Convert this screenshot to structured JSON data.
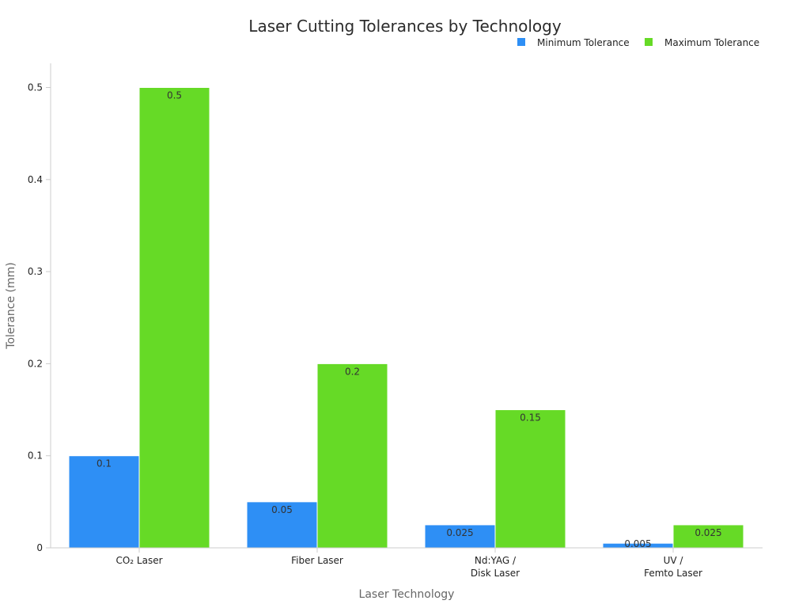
{
  "chart_data": {
    "type": "bar",
    "title": "Laser Cutting Tolerances by Technology",
    "xlabel": "Laser Technology",
    "ylabel": "Tolerance (mm)",
    "categories": [
      [
        "CO₂ Laser"
      ],
      [
        "Fiber Laser"
      ],
      [
        "Nd:YAG /",
        "Disk Laser"
      ],
      [
        "UV /",
        "Femto Laser"
      ]
    ],
    "series": [
      {
        "name": "Minimum Tolerance",
        "color": "#2e8ff5",
        "values": [
          0.1,
          0.05,
          0.025,
          0.005
        ],
        "labels": [
          "0.1",
          "0.05",
          "0.025",
          "0.005"
        ]
      },
      {
        "name": "Maximum Tolerance",
        "color": "#66da26",
        "values": [
          0.5,
          0.2,
          0.15,
          0.025
        ],
        "labels": [
          "0.5",
          "0.2",
          "0.15",
          "0.025"
        ]
      }
    ],
    "ylim": [
      0,
      0.5
    ],
    "yticks": [
      "0",
      "0.1",
      "0.2",
      "0.3",
      "0.4",
      "0.5"
    ],
    "legend_position": "top-right",
    "grid": false
  }
}
